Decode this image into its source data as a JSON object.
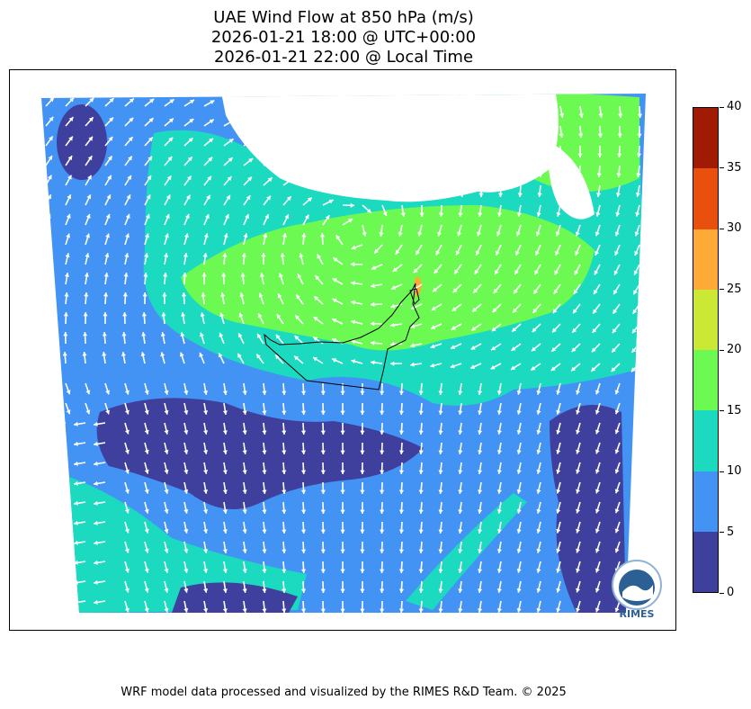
{
  "title": {
    "line1": "UAE Wind Flow at 850 hPa (m/s)",
    "line2": "2026-01-21 18:00 @ UTC+00:00",
    "line3": "2026-01-21 22:00 @ Local Time"
  },
  "colorbar": {
    "ticks": [
      "0",
      "5",
      "10",
      "15",
      "20",
      "25",
      "30",
      "35",
      "40"
    ],
    "colors": [
      "#3f3f9d",
      "#4393f5",
      "#1bdac0",
      "#6cfa52",
      "#cbe834",
      "#fdab36",
      "#e9500e",
      "#a11a04"
    ]
  },
  "footer": "WRF model data processed and visualized by the RIMES R&D Team. © 2025",
  "logo": {
    "text": "RIMES",
    "icon": "rimes-logo-icon"
  }
}
